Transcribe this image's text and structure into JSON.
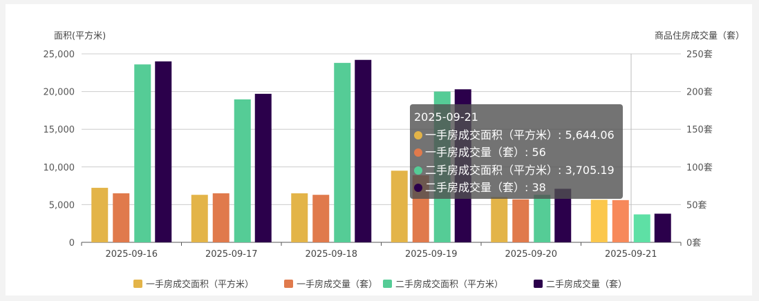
{
  "chart_data": {
    "type": "bar",
    "categories": [
      "2025-09-16",
      "2025-09-17",
      "2025-09-18",
      "2025-09-19",
      "2025-09-20",
      "2025-09-21"
    ],
    "ylabel": "面积(平方米)",
    "ylabel_right": "商品住房成交量（套）",
    "ylim": [
      0,
      25000
    ],
    "ylim_right": [
      0,
      250
    ],
    "yticks": [
      "0",
      "5,000",
      "10,000",
      "15,000",
      "20,000",
      "25,000"
    ],
    "yticks_right": [
      "0套",
      "50套",
      "100套",
      "150套",
      "200套",
      "250套"
    ],
    "grid": true,
    "legend_position": "bottom",
    "series": [
      {
        "name": "一手房成交面积（平方米）",
        "axis": "left",
        "color": "#e3b448",
        "values": [
          7230,
          6300,
          6500,
          9500,
          6000,
          5644.06
        ]
      },
      {
        "name": "一手房成交量（套）",
        "axis": "right",
        "color": "#e07a4c",
        "values": [
          65,
          65,
          63,
          89,
          57,
          56
        ]
      },
      {
        "name": "二手房成交面积（平方米）",
        "axis": "left",
        "color": "#55cc96",
        "values": [
          23600,
          18960,
          23800,
          20000,
          6300,
          3705.19
        ]
      },
      {
        "name": "二手房成交量（套）",
        "axis": "right",
        "color": "#2b004b",
        "values": [
          240,
          197,
          242,
          203,
          71,
          38
        ]
      }
    ],
    "highlight_colors": [
      "#fbc74c",
      "#f7895a",
      "#5ee0a5",
      "#2b004b"
    ],
    "tooltip": {
      "title": "2025-09-21",
      "rows": [
        "一手房成交面积（平方米）: 5,644.06",
        "一手房成交量（套）: 56",
        "二手房成交面积（平方米）: 3,705.19",
        "二手房成交量（套）: 38"
      ]
    }
  }
}
